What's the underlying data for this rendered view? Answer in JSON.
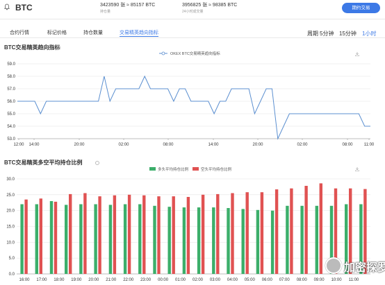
{
  "header": {
    "coin": "BTC",
    "stat1_main": "3423590 张 ≈ 85157 BTC",
    "stat1_sub": "持仓量",
    "stat2_main": "3956825 张 ≈ 98385 BTC",
    "stat2_sub": "24小时成交量",
    "trade_button": "期约交易"
  },
  "tabs": [
    "合约行情",
    "标记价格",
    "持仓数量",
    "交易精英趋向指标"
  ],
  "active_tab": 3,
  "period": {
    "label": "周期",
    "options": [
      "5分钟",
      "15分钟",
      "1小时"
    ],
    "active": 2
  },
  "colors": {
    "accent": "#3c79e6",
    "long": "#3cae6a",
    "short": "#e05252",
    "line": "#5b8fd0"
  },
  "icons": [
    "bell-icon",
    "info-icon",
    "download-icon"
  ],
  "chart1_title": "BTC交易精英趋向指标",
  "chart2_title": "BTC交易精英多空平均持仓比例",
  "watermark": "加密探罗",
  "chart_data": [
    {
      "type": "line",
      "legend": "OKEX BTC交易精英趋向指标",
      "x_ticks": [
        "12:00",
        "14:00",
        "20:00",
        "02:00",
        "08:00",
        "14:00",
        "20:00",
        "02:00",
        "08:00",
        "11:00"
      ],
      "ylim": [
        53,
        59
      ],
      "y_ticks": [
        "53.0",
        "54.0",
        "55.0",
        "56.0",
        "57.0",
        "58.0",
        "59.0"
      ],
      "grid": true,
      "values": [
        56,
        56,
        56,
        56,
        55,
        56,
        56,
        56,
        56,
        56,
        56,
        56,
        56,
        56,
        56,
        58,
        56,
        57,
        57,
        57,
        57,
        57,
        58,
        57,
        57,
        57,
        57,
        56,
        57,
        57,
        56,
        56,
        56,
        56,
        55,
        56,
        56,
        57,
        57,
        57,
        57,
        55,
        56,
        57,
        57,
        53,
        54,
        55,
        55,
        55,
        55,
        55,
        55,
        55,
        55,
        55,
        55,
        55,
        55,
        55,
        54,
        54
      ]
    },
    {
      "type": "bar",
      "series": [
        {
          "name": "多头平均持仓比例",
          "values": [
            22,
            22,
            23,
            21.8,
            22,
            22,
            21.8,
            22,
            22,
            21.5,
            21.2,
            21,
            21,
            21,
            20.8,
            20.5,
            20.2,
            20,
            21.5,
            21.5,
            21.5,
            21.5,
            22,
            22
          ]
        },
        {
          "name": "空头平均持仓比例",
          "values": [
            23.5,
            23.8,
            22.8,
            25.2,
            25.5,
            24.5,
            24.8,
            25,
            24.8,
            24.5,
            24.5,
            24.3,
            25,
            25.2,
            25.5,
            25.8,
            25.8,
            26.7,
            27,
            27.8,
            28.6,
            27,
            27,
            26.8
          ]
        }
      ],
      "x_ticks": [
        "16:00",
        "17:00",
        "18:00",
        "19:00",
        "20:00",
        "21:00",
        "22:00",
        "23:00",
        "00:00",
        "01:00",
        "02:00",
        "03:00",
        "04:00",
        "05:00",
        "06:00",
        "07:00",
        "08:00",
        "09:00",
        "10:00",
        "11:00"
      ],
      "ylim": [
        0,
        30
      ],
      "y_ticks": [
        "0.0",
        "5.0",
        "10.0",
        "15.0",
        "20.0",
        "25.0",
        "30.0"
      ],
      "grid": true,
      "legend_position": "top-center"
    }
  ]
}
